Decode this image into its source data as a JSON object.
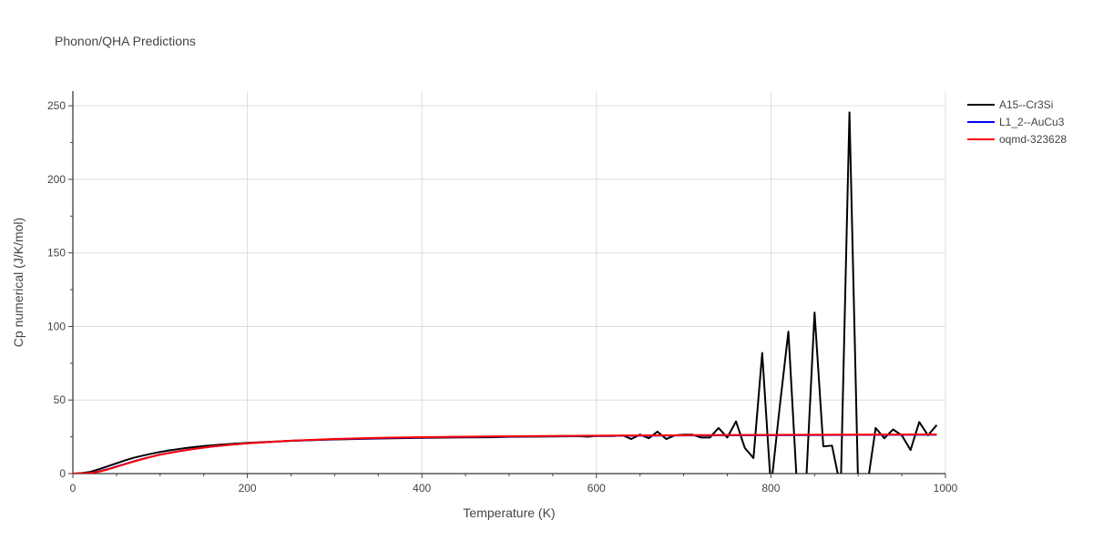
{
  "chart_data": {
    "type": "line",
    "title": "Phonon/QHA Predictions",
    "xlabel": "Temperature (K)",
    "ylabel": "Cp numerical (J/K/mol)",
    "xlim": [
      0,
      1000
    ],
    "ylim": [
      0,
      260
    ],
    "x_ticks": [
      0,
      200,
      400,
      600,
      800,
      1000
    ],
    "y_ticks": [
      0,
      50,
      100,
      150,
      200,
      250
    ],
    "grid": true,
    "legend_position": "top-right",
    "series": [
      {
        "name": "A15--Cr3Si",
        "color": "#000000",
        "x": [
          0,
          10,
          20,
          30,
          40,
          50,
          60,
          70,
          80,
          90,
          100,
          110,
          120,
          130,
          140,
          150,
          160,
          170,
          180,
          190,
          200,
          250,
          300,
          350,
          400,
          450,
          480,
          500,
          550,
          580,
          590,
          600,
          620,
          630,
          640,
          650,
          660,
          670,
          680,
          690,
          700,
          710,
          720,
          730,
          740,
          750,
          760,
          770,
          780,
          790,
          800,
          810,
          820,
          830,
          840,
          850,
          860,
          870,
          880,
          890,
          900,
          910,
          920,
          930,
          940,
          950,
          960,
          970,
          980,
          990
        ],
        "y": [
          0,
          0.3,
          1.2,
          3.0,
          5.0,
          7.0,
          9.0,
          10.8,
          12.2,
          13.5,
          14.7,
          15.7,
          16.6,
          17.4,
          18.1,
          18.7,
          19.2,
          19.7,
          20.1,
          20.5,
          20.9,
          22.3,
          23.2,
          23.8,
          24.3,
          24.6,
          24.7,
          25.0,
          25.2,
          25.4,
          25.1,
          25.6,
          25.5,
          26.0,
          23.5,
          26.5,
          24.0,
          28.5,
          23.5,
          26.0,
          26.5,
          26.5,
          24.5,
          24.5,
          31.0,
          24.5,
          35.5,
          17.5,
          10.5,
          82.0,
          -10,
          45.0,
          96.5,
          -10,
          -10,
          109.5,
          18.5,
          19.0,
          -10,
          245.5,
          -10,
          -10,
          31.0,
          24.0,
          30.0,
          26.0,
          16.0,
          35.0,
          26.0,
          33.0
        ]
      },
      {
        "name": "L1_2--AuCu3",
        "color": "#0000ff",
        "x": [
          0,
          10,
          20,
          30,
          40,
          50,
          60,
          70,
          80,
          90,
          100,
          120,
          140,
          160,
          180,
          200,
          250,
          300,
          350,
          400,
          500,
          600,
          700,
          800,
          900,
          990
        ],
        "y": [
          0,
          0.1,
          0.5,
          1.5,
          3.0,
          4.8,
          6.6,
          8.4,
          10.0,
          11.5,
          12.9,
          15.1,
          16.9,
          18.4,
          19.6,
          20.6,
          22.3,
          23.4,
          24.1,
          24.6,
          25.2,
          25.6,
          25.9,
          26.1,
          26.3,
          26.4
        ]
      },
      {
        "name": "oqmd-323628",
        "color": "#ff0000",
        "x": [
          0,
          10,
          20,
          30,
          40,
          50,
          60,
          70,
          80,
          90,
          100,
          120,
          140,
          160,
          180,
          200,
          250,
          300,
          350,
          400,
          500,
          600,
          700,
          800,
          900,
          990
        ],
        "y": [
          0,
          0.1,
          0.4,
          1.3,
          2.8,
          4.6,
          6.4,
          8.2,
          9.9,
          11.4,
          12.8,
          15.0,
          16.9,
          18.4,
          19.6,
          20.6,
          22.4,
          23.5,
          24.3,
          24.8,
          25.4,
          25.8,
          26.1,
          26.3,
          26.5,
          26.6
        ]
      }
    ]
  }
}
